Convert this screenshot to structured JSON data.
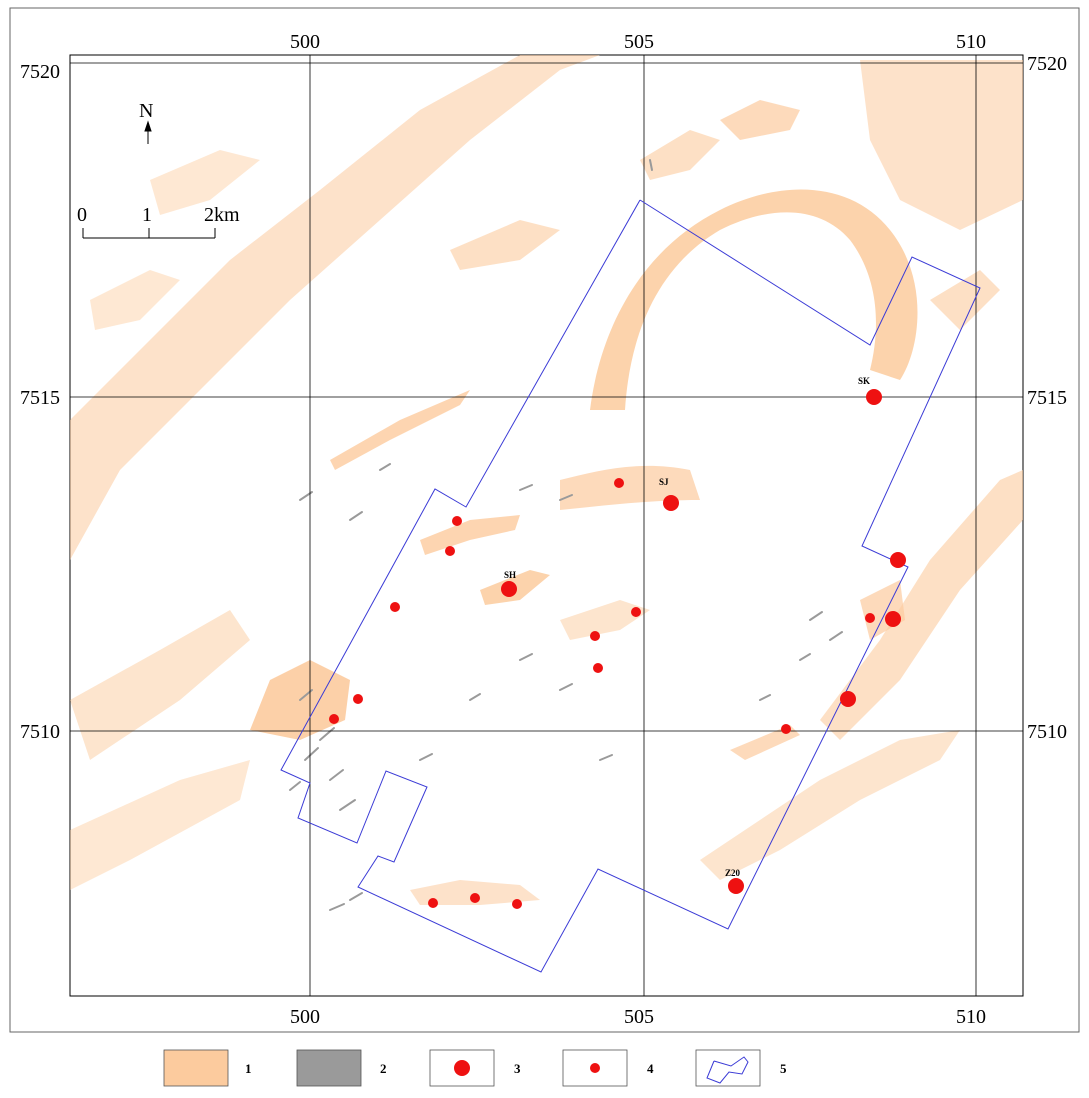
{
  "map": {
    "axes": {
      "x_ticks": [
        "500",
        "505",
        "510"
      ],
      "y_ticks": [
        "7520",
        "7515",
        "7510"
      ]
    },
    "north_arrow": {
      "label": "N",
      "icon": "north-arrow-icon"
    },
    "scale_bar": {
      "labels": [
        "0",
        "1",
        "2km"
      ]
    },
    "colors": {
      "unit_1": "#fccb9e",
      "unit_2": "#9a9a9a",
      "sites": "#ee1111",
      "boundary": "#3b3bd6",
      "grid": "#000000"
    },
    "sites_labeled": [
      {
        "label": "SK",
        "size": "large"
      },
      {
        "label": "SJ",
        "size": "large"
      },
      {
        "label": "SH",
        "size": "large"
      },
      {
        "label": "Z20",
        "size": "large"
      }
    ],
    "legend": [
      {
        "key": "1",
        "symbol": "orange-fill"
      },
      {
        "key": "2",
        "symbol": "gray-fill"
      },
      {
        "key": "3",
        "symbol": "large-red-dot"
      },
      {
        "key": "4",
        "symbol": "small-red-dot"
      },
      {
        "key": "5",
        "symbol": "blue-outline-polygon"
      }
    ]
  }
}
